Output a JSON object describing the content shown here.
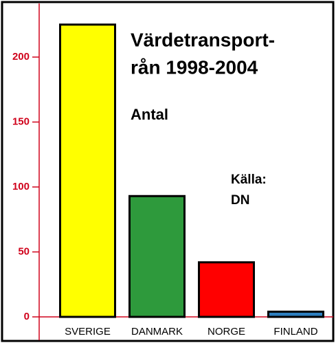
{
  "chart_data": {
    "type": "bar",
    "title": [
      "Värdetransport-",
      "rån 1998-2004"
    ],
    "subtitle": "Antal",
    "annotations": [
      "Källa:",
      "DN"
    ],
    "categories": [
      "SVERIGE",
      "DANMARK",
      "NORGE",
      "FINLAND"
    ],
    "values": [
      225,
      93,
      42,
      4
    ],
    "colors": [
      "#ffff00",
      "#2e9a3c",
      "#ff0000",
      "#2e7fc0"
    ],
    "axis_color": "#d0021b",
    "ylim": [
      0,
      236
    ],
    "yticks": [
      0,
      50,
      100,
      150,
      200
    ],
    "grid": false
  }
}
